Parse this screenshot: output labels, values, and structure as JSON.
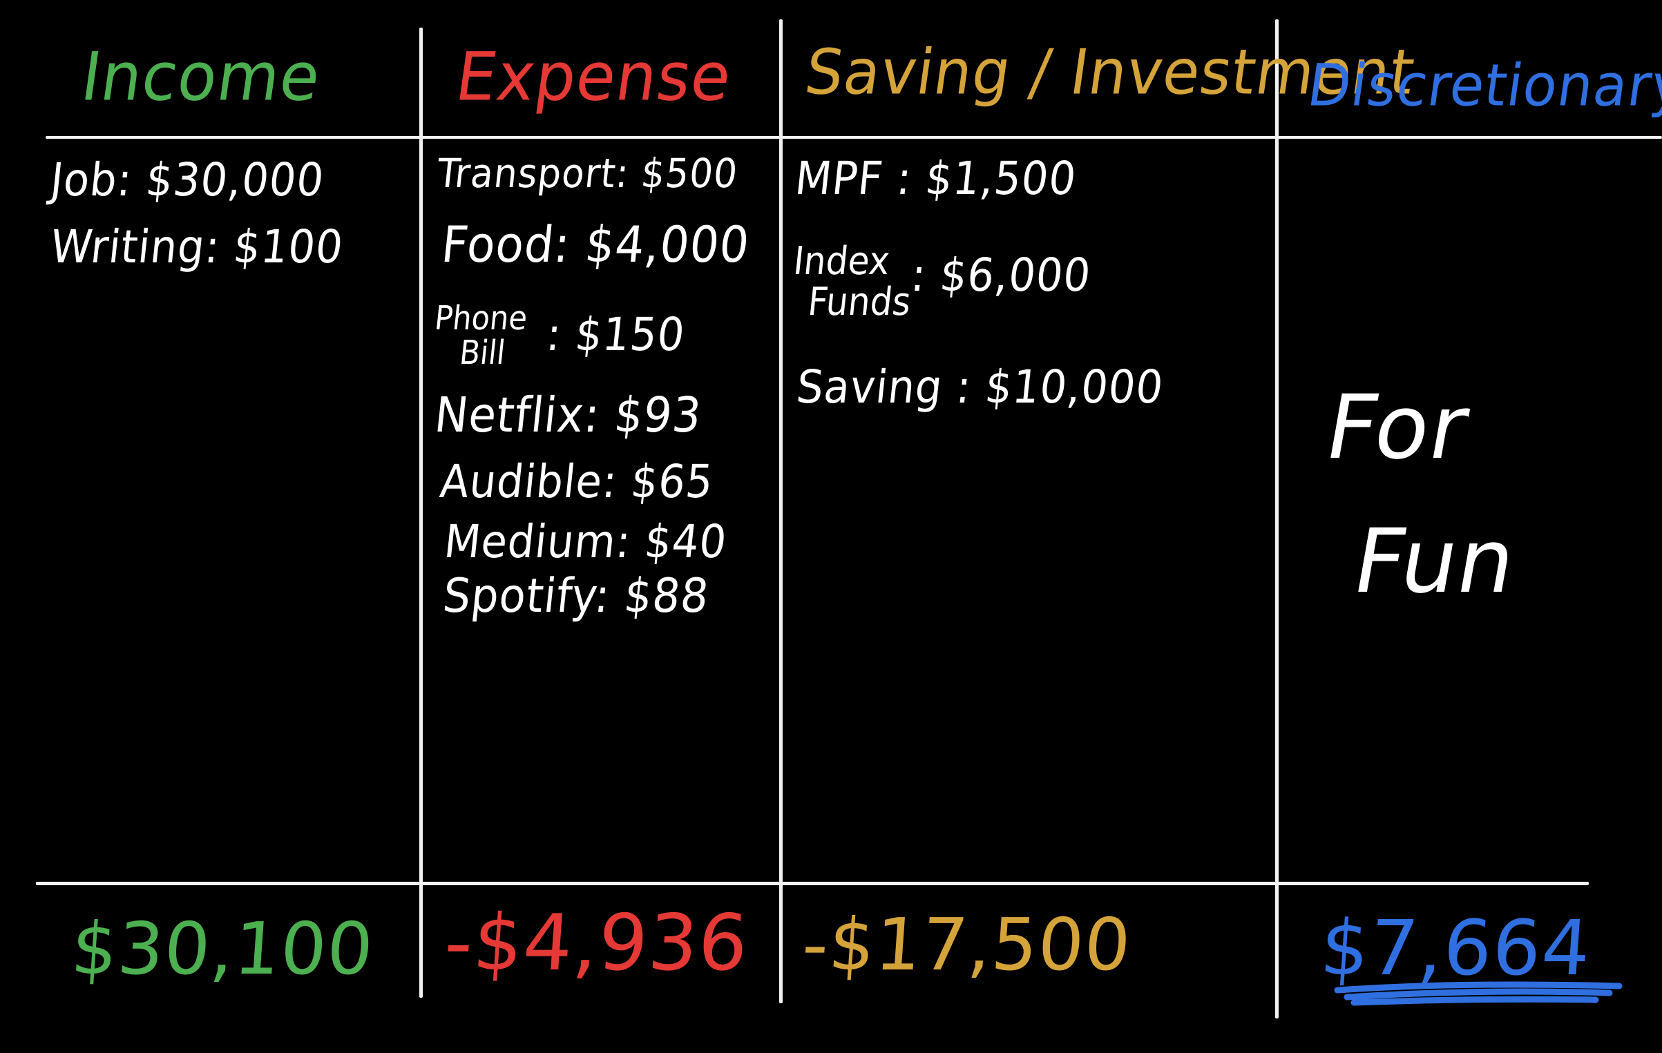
{
  "colors": {
    "background": "#000000",
    "lines": "#f2f2f2",
    "income": "#4caf50",
    "expense": "#e53935",
    "saving": "#d4a33a",
    "discretionary": "#2f6fe0",
    "items": "#ffffff"
  },
  "columns": {
    "income": {
      "header": "Income",
      "items": [
        {
          "label": "Job",
          "value": "$30,000"
        },
        {
          "label": "Writing",
          "value": "$100"
        }
      ],
      "total": "$30,100"
    },
    "expense": {
      "header": "Expense",
      "items": [
        {
          "label": "Transport",
          "value": "$500"
        },
        {
          "label": "Food",
          "value": "$4,000"
        },
        {
          "label_line1": "Phone",
          "label_line2": "Bill",
          "value": "$150"
        },
        {
          "label": "Netflix",
          "value": "$93"
        },
        {
          "label": "Audible",
          "value": "$65"
        },
        {
          "label": "Medium",
          "value": "$40"
        },
        {
          "label": "Spotify",
          "value": "$88"
        }
      ],
      "total": "-$4,936"
    },
    "saving": {
      "header": "Saving / Investment",
      "items": [
        {
          "label": "MPF",
          "value": "$1,500"
        },
        {
          "label_line1": "Index",
          "label_line2": "Funds",
          "value": "$6,000"
        },
        {
          "label": "Saving",
          "value": "$10,000"
        }
      ],
      "total": "-$17,500"
    },
    "discretionary": {
      "header": "Discretionary",
      "note_line1": "For",
      "note_line2": "Fun",
      "total": "$7,664"
    }
  }
}
